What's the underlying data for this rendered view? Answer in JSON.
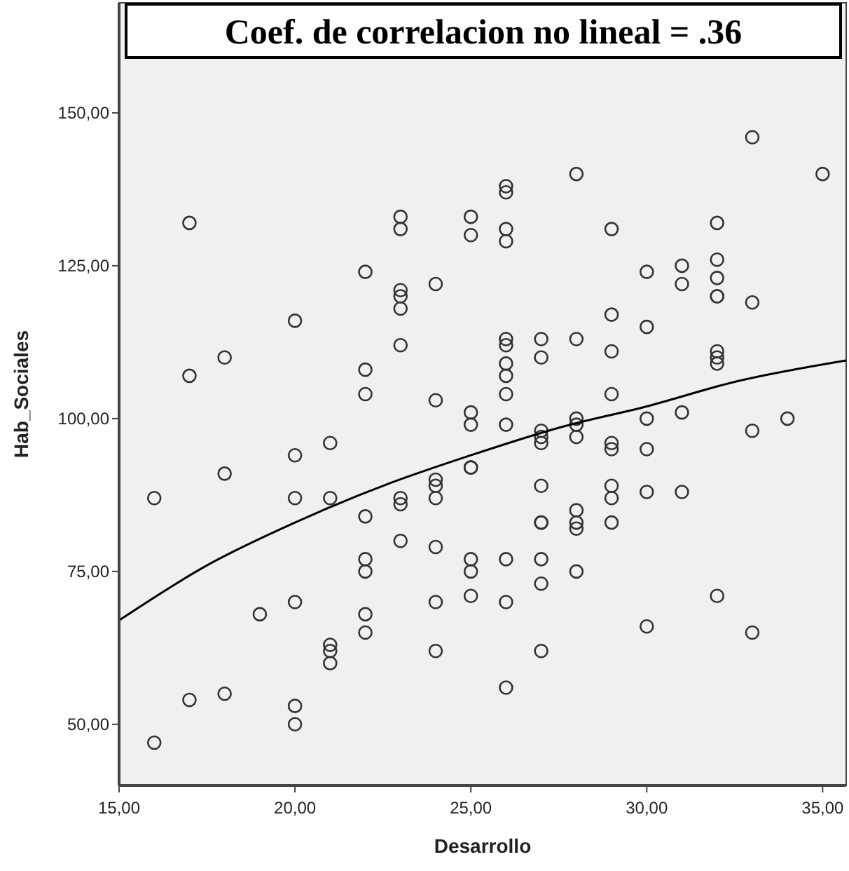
{
  "chart_data": {
    "type": "scatter",
    "title": "Coef. de correlacion no lineal = .36",
    "xlabel": "Desarrollo",
    "ylabel": "Hab_Sociales",
    "xlim": [
      15,
      35.67
    ],
    "ylim": [
      40,
      168
    ],
    "xticks": [
      {
        "value": 15,
        "label": "15,00"
      },
      {
        "value": 20,
        "label": "20,00"
      },
      {
        "value": 25,
        "label": "25,00"
      },
      {
        "value": 30,
        "label": "30,00"
      },
      {
        "value": 35,
        "label": "35,00"
      }
    ],
    "yticks": [
      {
        "value": 50,
        "label": "50,00"
      },
      {
        "value": 75,
        "label": "75,00"
      },
      {
        "value": 100,
        "label": "100,00"
      },
      {
        "value": 125,
        "label": "125,00"
      },
      {
        "value": 150,
        "label": "150,00"
      }
    ],
    "grid": false,
    "series": [
      {
        "marker": "circle",
        "color": "#333333",
        "x": [
          16,
          16,
          17,
          17,
          17,
          18,
          18,
          18,
          19,
          20,
          20,
          20,
          20,
          20,
          20,
          21,
          21,
          21,
          21,
          21,
          22,
          22,
          22,
          22,
          22,
          22,
          22,
          22,
          23,
          23,
          23,
          23,
          23,
          23,
          23,
          23,
          23,
          24,
          24,
          24,
          24,
          24,
          24,
          24,
          24,
          25,
          25,
          25,
          25,
          25,
          25,
          25,
          25,
          25,
          26,
          26,
          26,
          26,
          26,
          26,
          26,
          26,
          26,
          26,
          26,
          26,
          26,
          27,
          27,
          27,
          27,
          27,
          27,
          27,
          27,
          27,
          27,
          27,
          28,
          28,
          28,
          28,
          28,
          28,
          28,
          28,
          28,
          29,
          29,
          29,
          29,
          29,
          29,
          29,
          29,
          29,
          30,
          30,
          30,
          30,
          30,
          30,
          31,
          31,
          31,
          31,
          32,
          32,
          32,
          32,
          32,
          32,
          32,
          32,
          32,
          33,
          33,
          33,
          33,
          34,
          35
        ],
        "values": [
          87,
          47,
          132,
          107,
          54,
          110,
          91,
          55,
          68,
          116,
          94,
          87,
          70,
          53,
          50,
          96,
          87,
          63,
          62,
          60,
          124,
          108,
          104,
          84,
          77,
          75,
          68,
          65,
          133,
          131,
          121,
          120,
          118,
          112,
          87,
          86,
          80,
          122,
          103,
          90,
          89,
          87,
          79,
          70,
          62,
          133,
          130,
          101,
          99,
          92,
          92,
          77,
          75,
          71,
          138,
          137,
          131,
          129,
          113,
          112,
          109,
          107,
          104,
          99,
          77,
          70,
          56,
          113,
          110,
          98,
          97,
          96,
          89,
          83,
          83,
          77,
          73,
          62,
          140,
          113,
          100,
          99,
          97,
          85,
          83,
          82,
          75,
          131,
          117,
          111,
          104,
          96,
          95,
          89,
          87,
          83,
          124,
          115,
          100,
          95,
          88,
          66,
          125,
          122,
          101,
          88,
          132,
          126,
          123,
          120,
          120,
          111,
          110,
          109,
          71,
          146,
          119,
          98,
          65,
          100,
          140
        ]
      },
      {
        "type": "line",
        "marker": "none",
        "color": "#000000",
        "x": [
          15,
          17.5,
          20,
          22.5,
          25,
          27.5,
          30,
          32.5,
          35.67
        ],
        "values": [
          67,
          76,
          83,
          89,
          94,
          98.5,
          102,
          106,
          109.5
        ]
      }
    ]
  }
}
